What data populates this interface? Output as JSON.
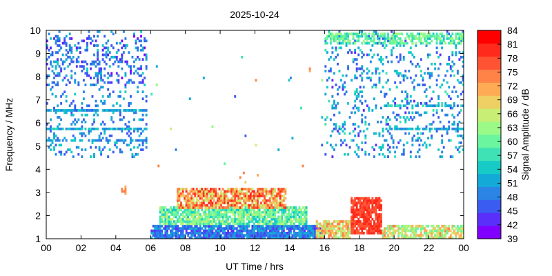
{
  "chart_data": {
    "type": "heatmap",
    "title": "2025-10-24",
    "xlabel": "UT Time / hrs",
    "ylabel": "Frequency / MHz",
    "colorbar_label": "Signal Amplitude / dB",
    "xlim": [
      0,
      24
    ],
    "ylim": [
      1,
      10
    ],
    "x_ticks": [
      "00",
      "02",
      "04",
      "06",
      "08",
      "10",
      "12",
      "14",
      "16",
      "18",
      "20",
      "22",
      "00"
    ],
    "y_ticks": [
      "1",
      "2",
      "3",
      "4",
      "5",
      "6",
      "7",
      "8",
      "9",
      "10"
    ],
    "colorbar": {
      "levels": [
        39,
        42,
        45,
        48,
        51,
        54,
        57,
        60,
        63,
        66,
        69,
        72,
        75,
        78,
        81,
        84
      ],
      "tick_labels": [
        "39",
        "42",
        "45",
        "48",
        "51",
        "54",
        "57",
        "60",
        "63",
        "66",
        "69",
        "72",
        "75",
        "78",
        "81",
        "84"
      ],
      "colors": [
        "#8000ff",
        "#5a2ff9",
        "#3b5cf0",
        "#2a85e4",
        "#14aad8",
        "#16cbc6",
        "#3fe2b4",
        "#6af59e",
        "#9bf987",
        "#c9ee75",
        "#eecf63",
        "#ffab56",
        "#ff8247",
        "#ff5333",
        "#ff2a1c",
        "#ff0000"
      ]
    },
    "regions": [
      {
        "t": [
          0.0,
          5.8
        ],
        "f": [
          4.5,
          10.0
        ],
        "level": [
          45,
          56
        ],
        "density": 0.14
      },
      {
        "t": [
          0.0,
          5.8
        ],
        "f": [
          6.5,
          6.6
        ],
        "level": [
          47,
          56
        ],
        "density": 0.8
      },
      {
        "t": [
          0.0,
          5.8
        ],
        "f": [
          5.7,
          5.8
        ],
        "level": [
          48,
          58
        ],
        "density": 0.8
      },
      {
        "t": [
          0.0,
          5.8
        ],
        "f": [
          5.2,
          5.3
        ],
        "level": [
          47,
          55
        ],
        "density": 0.6
      },
      {
        "t": [
          0.0,
          5.8
        ],
        "f": [
          7.6,
          9.8
        ],
        "level": [
          41,
          50
        ],
        "density": 0.12
      },
      {
        "t": [
          4.3,
          4.6
        ],
        "f": [
          2.9,
          3.3
        ],
        "level": [
          73,
          78
        ],
        "density": 0.5
      },
      {
        "t": [
          16.0,
          24.0
        ],
        "f": [
          4.5,
          10.0
        ],
        "level": [
          44,
          58
        ],
        "density": 0.16
      },
      {
        "t": [
          16.0,
          24.0
        ],
        "f": [
          9.4,
          9.9
        ],
        "level": [
          56,
          66
        ],
        "density": 0.6
      },
      {
        "t": [
          19.5,
          24.0
        ],
        "f": [
          5.7,
          5.8
        ],
        "level": [
          48,
          58
        ],
        "density": 0.8
      },
      {
        "t": [
          19.5,
          24.0
        ],
        "f": [
          6.7,
          6.8
        ],
        "level": [
          50,
          60
        ],
        "density": 0.7
      },
      {
        "t": [
          6.0,
          16.0
        ],
        "f": [
          1.0,
          1.6
        ],
        "level": [
          44,
          54
        ],
        "density": 0.9
      },
      {
        "t": [
          6.5,
          15.0
        ],
        "f": [
          1.6,
          2.4
        ],
        "level": [
          55,
          68
        ],
        "density": 0.85
      },
      {
        "t": [
          7.5,
          13.8
        ],
        "f": [
          2.3,
          3.2
        ],
        "level": [
          66,
          84
        ],
        "density": 0.8
      },
      {
        "t": [
          15.5,
          17.5
        ],
        "f": [
          1.0,
          1.8
        ],
        "level": [
          63,
          78
        ],
        "density": 0.8
      },
      {
        "t": [
          17.5,
          19.3
        ],
        "f": [
          1.2,
          2.8
        ],
        "level": [
          78,
          84
        ],
        "density": 0.85
      },
      {
        "t": [
          19.3,
          24.0
        ],
        "f": [
          1.0,
          1.6
        ],
        "level": [
          60,
          76
        ],
        "density": 0.7
      },
      {
        "t": [
          6.0,
          16.0
        ],
        "f": [
          2.5,
          9.0
        ],
        "level": [
          45,
          78
        ],
        "density": 0.004
      }
    ]
  }
}
